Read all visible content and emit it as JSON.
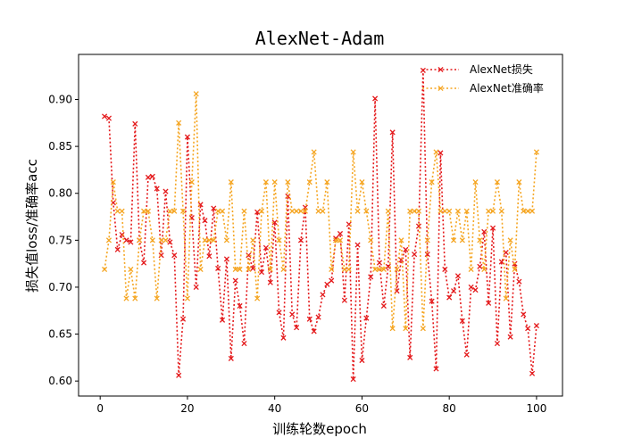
{
  "chart_data": {
    "type": "line",
    "title": "AlexNet-Adam",
    "xlabel": "训练轮数epoch",
    "ylabel": "损失值loss/准确率acc",
    "xlim": [
      -4.95,
      105.95
    ],
    "ylim": [
      0.584,
      0.948
    ],
    "xticks": [
      0,
      20,
      40,
      60,
      80,
      100
    ],
    "yticks": [
      0.6,
      0.65,
      0.7,
      0.75,
      0.8,
      0.85,
      0.9
    ],
    "ytick_labels": [
      "0.60",
      "0.65",
      "0.70",
      "0.75",
      "0.80",
      "0.85",
      "0.90"
    ],
    "legend_position": "top-right",
    "grid": false,
    "x": [
      1,
      2,
      3,
      4,
      5,
      6,
      7,
      8,
      9,
      10,
      11,
      12,
      13,
      14,
      15,
      16,
      17,
      18,
      19,
      20,
      21,
      22,
      23,
      24,
      25,
      26,
      27,
      28,
      29,
      30,
      31,
      32,
      33,
      34,
      35,
      36,
      37,
      38,
      39,
      40,
      41,
      42,
      43,
      44,
      45,
      46,
      47,
      48,
      49,
      50,
      51,
      52,
      53,
      54,
      55,
      56,
      57,
      58,
      59,
      60,
      61,
      62,
      63,
      64,
      65,
      66,
      67,
      68,
      69,
      70,
      71,
      72,
      73,
      74,
      75,
      76,
      77,
      78,
      79,
      80,
      81,
      82,
      83,
      84,
      85,
      86,
      87,
      88,
      89,
      90,
      91,
      92,
      93,
      94,
      95,
      96,
      97,
      98,
      99,
      100
    ],
    "series": [
      {
        "name": "AlexNet损失",
        "color": "#e41a1c",
        "marker": "x",
        "values": [
          0.882,
          0.88,
          0.79,
          0.74,
          0.756,
          0.75,
          0.748,
          0.874,
          0.75,
          0.726,
          0.817,
          0.818,
          0.805,
          0.734,
          0.802,
          0.748,
          0.734,
          0.606,
          0.666,
          0.86,
          0.774,
          0.7,
          0.788,
          0.771,
          0.733,
          0.784,
          0.72,
          0.665,
          0.73,
          0.624,
          0.707,
          0.68,
          0.64,
          0.734,
          0.72,
          0.78,
          0.716,
          0.742,
          0.705,
          0.769,
          0.673,
          0.646,
          0.797,
          0.671,
          0.657,
          0.75,
          0.785,
          0.666,
          0.653,
          0.668,
          0.692,
          0.703,
          0.707,
          0.752,
          0.757,
          0.686,
          0.767,
          0.602,
          0.745,
          0.622,
          0.667,
          0.711,
          0.901,
          0.726,
          0.68,
          0.722,
          0.865,
          0.696,
          0.729,
          0.74,
          0.625,
          0.735,
          0.765,
          0.931,
          0.735,
          0.685,
          0.613,
          0.843,
          0.719,
          0.689,
          0.696,
          0.712,
          0.664,
          0.628,
          0.7,
          0.697,
          0.722,
          0.759,
          0.683,
          0.763,
          0.64,
          0.727,
          0.737,
          0.647,
          0.725,
          0.706,
          0.671,
          0.656,
          0.608,
          0.659
        ]
      },
      {
        "name": "AlexNet准确率",
        "color": "#f5a623",
        "marker": "x",
        "values": [
          0.719,
          0.75,
          0.812,
          0.781,
          0.781,
          0.688,
          0.719,
          0.688,
          0.75,
          0.781,
          0.781,
          0.75,
          0.688,
          0.75,
          0.75,
          0.781,
          0.781,
          0.875,
          0.781,
          0.688,
          0.812,
          0.906,
          0.719,
          0.75,
          0.75,
          0.75,
          0.781,
          0.781,
          0.75,
          0.812,
          0.719,
          0.719,
          0.781,
          0.719,
          0.75,
          0.688,
          0.781,
          0.812,
          0.719,
          0.812,
          0.75,
          0.719,
          0.812,
          0.781,
          0.781,
          0.781,
          0.781,
          0.812,
          0.844,
          0.781,
          0.781,
          0.812,
          0.719,
          0.75,
          0.75,
          0.719,
          0.719,
          0.844,
          0.781,
          0.812,
          0.781,
          0.75,
          0.719,
          0.719,
          0.719,
          0.781,
          0.656,
          0.719,
          0.75,
          0.656,
          0.781,
          0.781,
          0.781,
          0.656,
          0.75,
          0.812,
          0.844,
          0.781,
          0.781,
          0.781,
          0.75,
          0.781,
          0.75,
          0.781,
          0.719,
          0.812,
          0.75,
          0.719,
          0.781,
          0.781,
          0.812,
          0.781,
          0.688,
          0.75,
          0.719,
          0.812,
          0.781,
          0.781,
          0.781,
          0.844
        ]
      }
    ]
  }
}
